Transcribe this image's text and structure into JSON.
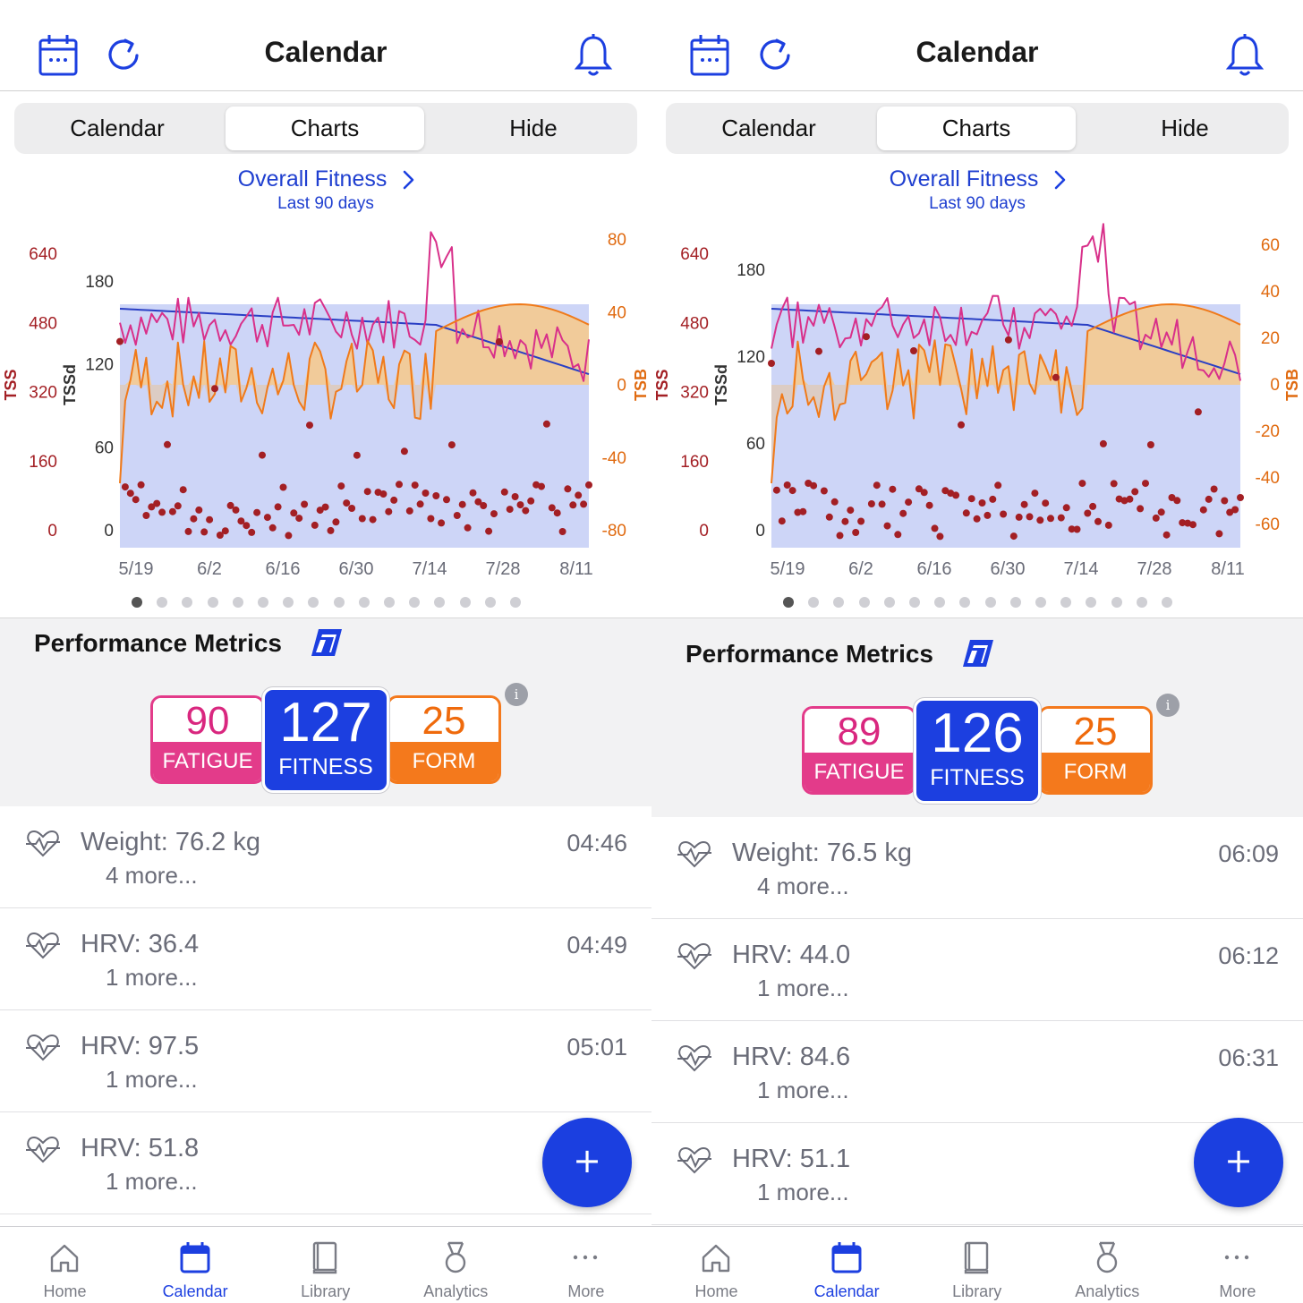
{
  "panels": [
    {
      "header": {
        "title": "Calendar"
      },
      "segments": [
        "Calendar",
        "Charts",
        "Hide"
      ],
      "selected_segment": 1,
      "chart": {
        "title": "Overall Fitness",
        "subtitle": "Last 90 days",
        "left_outer_label": "TSS",
        "left_outer_ticks": [
          "640",
          "480",
          "320",
          "160",
          "0"
        ],
        "left_inner_label": "TSSd",
        "left_inner_ticks": [
          "180",
          "120",
          "60",
          "0"
        ],
        "right_label": "TSB",
        "right_ticks": [
          "80",
          "40",
          "0",
          "-40",
          "-80"
        ],
        "x_ticks": [
          "5/19",
          "6/2",
          "6/16",
          "6/30",
          "7/14",
          "7/28",
          "8/11"
        ]
      },
      "page_dots": {
        "count": 16,
        "active": 0
      },
      "performance": {
        "title": "Performance Metrics",
        "fatigue": {
          "value": "90",
          "label": "FATIGUE"
        },
        "fitness": {
          "value": "127",
          "label": "FITNESS"
        },
        "form": {
          "value": "25",
          "label": "FORM"
        }
      },
      "metrics_list": [
        {
          "text": "Weight: 76.2 kg",
          "more": "4 more...",
          "time": "04:46"
        },
        {
          "text": "HRV: 36.4",
          "more": "1 more...",
          "time": "04:49"
        },
        {
          "text": "HRV: 97.5",
          "more": "1 more...",
          "time": "05:01"
        },
        {
          "text": "HRV: 51.8",
          "more": "1 more...",
          "time": ""
        }
      ],
      "fab_label": "+"
    },
    {
      "header": {
        "title": "Calendar"
      },
      "segments": [
        "Calendar",
        "Charts",
        "Hide"
      ],
      "selected_segment": 1,
      "chart": {
        "title": "Overall Fitness",
        "subtitle": "Last 90 days",
        "left_outer_label": "TSS",
        "left_outer_ticks": [
          "640",
          "480",
          "320",
          "160",
          "0"
        ],
        "left_inner_label": "TSSd",
        "left_inner_ticks": [
          "180",
          "120",
          "60",
          "0"
        ],
        "right_label": "TSB",
        "right_ticks": [
          "60",
          "40",
          "20",
          "0",
          "-20",
          "-40",
          "-60"
        ],
        "x_ticks": [
          "5/19",
          "6/2",
          "6/16",
          "6/30",
          "7/14",
          "7/28",
          "8/11"
        ]
      },
      "page_dots": {
        "count": 16,
        "active": 0
      },
      "performance": {
        "title": "Performance Metrics",
        "fatigue": {
          "value": "89",
          "label": "FATIGUE"
        },
        "fitness": {
          "value": "126",
          "label": "FITNESS"
        },
        "form": {
          "value": "25",
          "label": "FORM"
        }
      },
      "metrics_list": [
        {
          "text": "Weight: 76.5 kg",
          "more": "4 more...",
          "time": "06:09"
        },
        {
          "text": "HRV: 44.0",
          "more": "1 more...",
          "time": "06:12"
        },
        {
          "text": "HRV: 84.6",
          "more": "1 more...",
          "time": "06:31"
        },
        {
          "text": "HRV: 51.1",
          "more": "1 more...",
          "time": ""
        }
      ],
      "fab_label": "+"
    }
  ],
  "tabs": [
    {
      "label": "Home",
      "icon": "home-icon"
    },
    {
      "label": "Calendar",
      "icon": "calendar-icon",
      "active": true
    },
    {
      "label": "Library",
      "icon": "library-icon"
    },
    {
      "label": "Analytics",
      "icon": "analytics-icon"
    },
    {
      "label": "More",
      "icon": "more-icon"
    }
  ],
  "colors": {
    "accent": "#1c3fe0",
    "fatigue": "#e33b8a",
    "form": "#f4791c",
    "fitness_area": "#cdd5f7",
    "form_area": "#f7c98a",
    "tss_points": "#a31f24"
  }
}
